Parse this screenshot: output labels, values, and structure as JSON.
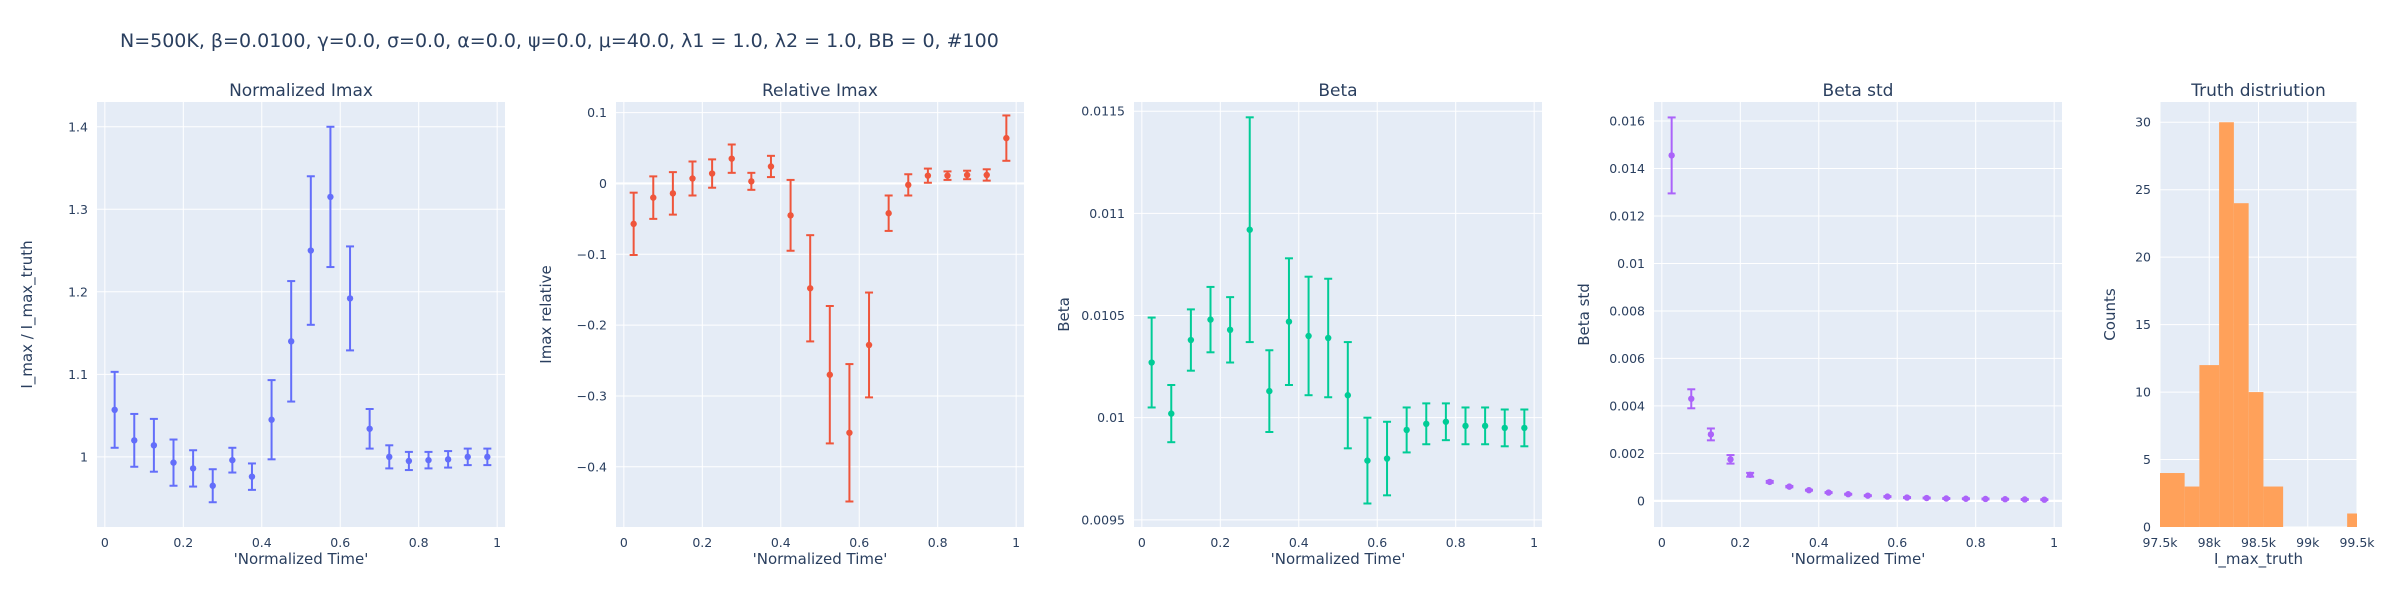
{
  "figure_title": "N=500K, β=0.0100, γ=0.0, σ=0.0,  α=0.0, ψ=0.0, μ=40.0, λ1 = 1.0, λ2 = 1.0, BB = 0, #100",
  "chart_data": [
    {
      "type": "scatter",
      "title": "Normalized Imax",
      "xlabel": "'Normalized Time'",
      "ylabel": "I_max / I_max_truth",
      "color": "#636efa",
      "xlim": [
        -0.02,
        1.02
      ],
      "ylim": [
        0.915,
        1.43
      ],
      "xticks": [
        0,
        0.2,
        0.4,
        0.6,
        0.8,
        1
      ],
      "xtick_labels": [
        "0",
        "0.2",
        "0.4",
        "0.6",
        "0.8",
        "1"
      ],
      "yticks": [
        1,
        1.1,
        1.2,
        1.3,
        1.4
      ],
      "ytick_labels": [
        "1",
        "1.1",
        "1.2",
        "1.3",
        "1.4"
      ],
      "x": [
        0.025,
        0.075,
        0.125,
        0.175,
        0.225,
        0.275,
        0.325,
        0.375,
        0.425,
        0.475,
        0.525,
        0.575,
        0.625,
        0.675,
        0.725,
        0.775,
        0.825,
        0.875,
        0.925,
        0.975
      ],
      "y": [
        1.057,
        1.02,
        1.014,
        0.993,
        0.986,
        0.965,
        0.996,
        0.976,
        1.045,
        1.14,
        1.25,
        1.315,
        1.192,
        1.034,
        1.0,
        0.995,
        0.996,
        0.997,
        1.0,
        1.0
      ],
      "err": [
        0.046,
        0.032,
        0.032,
        0.028,
        0.022,
        0.02,
        0.015,
        0.016,
        0.048,
        0.073,
        0.09,
        0.085,
        0.063,
        0.024,
        0.014,
        0.011,
        0.01,
        0.01,
        0.01,
        0.01
      ]
    },
    {
      "type": "scatter",
      "title": "Relative Imax",
      "xlabel": "'Normalized Time'",
      "ylabel": "Imax relative",
      "color": "#ef553b",
      "xlim": [
        -0.02,
        1.02
      ],
      "ylim": [
        -0.485,
        0.115
      ],
      "xticks": [
        0,
        0.2,
        0.4,
        0.6,
        0.8,
        1
      ],
      "xtick_labels": [
        "0",
        "0.2",
        "0.4",
        "0.6",
        "0.8",
        "1"
      ],
      "yticks": [
        -0.4,
        -0.3,
        -0.2,
        -0.1,
        0,
        0.1
      ],
      "ytick_labels": [
        "−0.4",
        "−0.3",
        "−0.2",
        "−0.1",
        "0",
        "0.1"
      ],
      "x": [
        0.025,
        0.075,
        0.125,
        0.175,
        0.225,
        0.275,
        0.325,
        0.375,
        0.425,
        0.475,
        0.525,
        0.575,
        0.625,
        0.675,
        0.725,
        0.775,
        0.825,
        0.875,
        0.925,
        0.975
      ],
      "y": [
        -0.057,
        -0.02,
        -0.014,
        0.007,
        0.014,
        0.035,
        0.003,
        0.024,
        -0.045,
        -0.148,
        -0.27,
        -0.352,
        -0.228,
        -0.042,
        -0.002,
        0.011,
        0.011,
        0.012,
        0.012,
        0.064
      ],
      "err": [
        0.044,
        0.03,
        0.03,
        0.024,
        0.02,
        0.02,
        0.012,
        0.015,
        0.05,
        0.075,
        0.097,
        0.097,
        0.074,
        0.025,
        0.015,
        0.01,
        0.006,
        0.006,
        0.008,
        0.032
      ]
    },
    {
      "type": "scatter",
      "title": "Beta",
      "xlabel": "'Normalized Time'",
      "ylabel": "Beta",
      "color": "#00cc96",
      "xlim": [
        -0.02,
        1.02
      ],
      "ylim": [
        0.009465,
        0.011545
      ],
      "xticks": [
        0,
        0.2,
        0.4,
        0.6,
        0.8,
        1
      ],
      "xtick_labels": [
        "0",
        "0.2",
        "0.4",
        "0.6",
        "0.8",
        "1"
      ],
      "yticks": [
        0.0095,
        0.01,
        0.0105,
        0.011,
        0.0115
      ],
      "ytick_labels": [
        "0.0095",
        "0.01",
        "0.0105",
        "0.011",
        "0.0115"
      ],
      "x": [
        0.025,
        0.075,
        0.125,
        0.175,
        0.225,
        0.275,
        0.325,
        0.375,
        0.425,
        0.475,
        0.525,
        0.575,
        0.625,
        0.675,
        0.725,
        0.775,
        0.825,
        0.875,
        0.925,
        0.975
      ],
      "y": [
        0.01027,
        0.01002,
        0.01038,
        0.01048,
        0.01043,
        0.01092,
        0.01013,
        0.01047,
        0.0104,
        0.01039,
        0.01011,
        0.00979,
        0.0098,
        0.00994,
        0.00997,
        0.00998,
        0.00996,
        0.00996,
        0.00995,
        0.00995
      ],
      "err": [
        0.00022,
        0.00014,
        0.00015,
        0.00016,
        0.00016,
        0.00055,
        0.0002,
        0.00031,
        0.00029,
        0.00029,
        0.00026,
        0.00021,
        0.00018,
        0.00011,
        0.0001,
        9e-05,
        9e-05,
        9e-05,
        9e-05,
        9e-05
      ]
    },
    {
      "type": "scatter",
      "title": "Beta std",
      "xlabel": "'Normalized Time'",
      "ylabel": "Beta std",
      "color": "#ab63fa",
      "xlim": [
        -0.02,
        1.02
      ],
      "ylim": [
        -0.0011,
        0.0168
      ],
      "xticks": [
        0,
        0.2,
        0.4,
        0.6,
        0.8,
        1
      ],
      "xtick_labels": [
        "0",
        "0.2",
        "0.4",
        "0.6",
        "0.8",
        "1"
      ],
      "yticks": [
        0,
        0.002,
        0.004,
        0.006,
        0.008,
        0.01,
        0.012,
        0.014,
        0.016
      ],
      "ytick_labels": [
        "0",
        "0.002",
        "0.004",
        "0.006",
        "0.008",
        "0.01",
        "0.012",
        "0.014",
        "0.016"
      ],
      "x": [
        0.025,
        0.075,
        0.125,
        0.175,
        0.225,
        0.275,
        0.325,
        0.375,
        0.425,
        0.475,
        0.525,
        0.575,
        0.625,
        0.675,
        0.725,
        0.775,
        0.825,
        0.875,
        0.925,
        0.975
      ],
      "y": [
        0.01455,
        0.0043,
        0.0028,
        0.00175,
        0.0011,
        0.0008,
        0.0006,
        0.00045,
        0.00035,
        0.00028,
        0.00022,
        0.00018,
        0.00014,
        0.00012,
        0.0001,
        9e-05,
        8e-05,
        7e-05,
        6e-05,
        5e-05
      ],
      "err": [
        0.0016,
        0.0004,
        0.00025,
        0.00018,
        8e-05,
        4e-05,
        3e-05,
        2e-05,
        2e-05,
        2e-05,
        2e-05,
        2e-05,
        2e-05,
        2e-05,
        2e-05,
        2e-05,
        2e-05,
        2e-05,
        2e-05,
        2e-05
      ]
    },
    {
      "type": "bar",
      "title": "Truth distriution",
      "xlabel": "I_max_truth",
      "ylabel": "Counts",
      "color": "#ffa15a",
      "xlim": [
        97500,
        99500
      ],
      "ylim": [
        0,
        31.5
      ],
      "xticks": [
        97500,
        98000,
        98500,
        99000,
        99500
      ],
      "xtick_labels": [
        "97.5k",
        "98k",
        "98.5k",
        "99k",
        "99.5k"
      ],
      "yticks": [
        0,
        5,
        10,
        15,
        20,
        25,
        30
      ],
      "ytick_labels": [
        "0",
        "5",
        "10",
        "15",
        "20",
        "25",
        "30"
      ],
      "bin_edges": [
        97500,
        97750,
        97900,
        98100,
        98250,
        98400,
        98550,
        98750,
        99400,
        99500
      ],
      "values": [
        4,
        3,
        12,
        30,
        24,
        10,
        3,
        0,
        1
      ]
    }
  ]
}
